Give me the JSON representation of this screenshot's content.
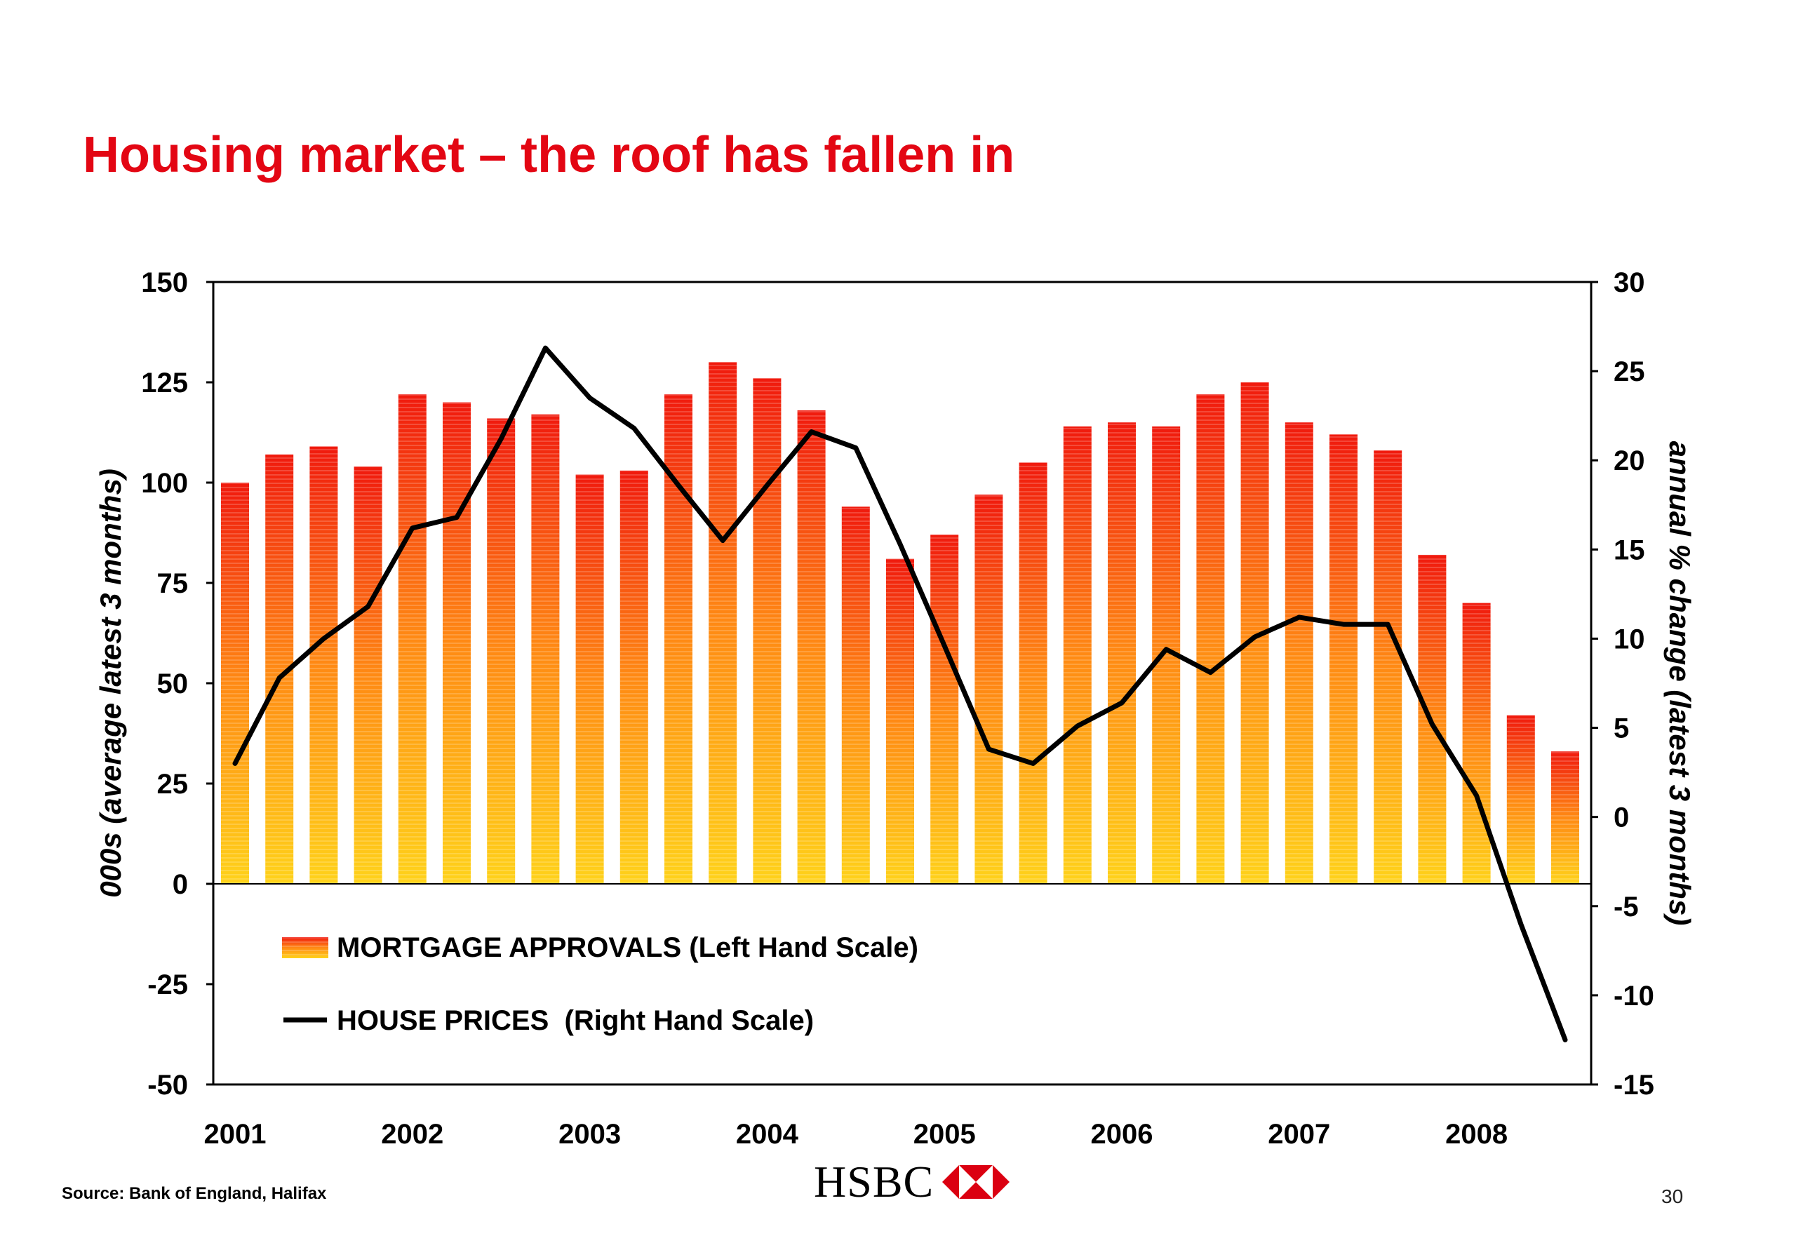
{
  "slide": {
    "title": "Housing market – the roof has fallen in",
    "source": "Source: Bank of England, Halifax",
    "page_number": "30",
    "logo_text": "HSBC",
    "brand_red": "#db0011"
  },
  "chart_data": {
    "type": "bar",
    "title": "",
    "ylabel": "000s (average latest 3 months)",
    "y2label": "annual % change (latest 3 months)",
    "ylim": [
      -50,
      150
    ],
    "y2lim": [
      -15,
      30
    ],
    "yticks": [
      150,
      125,
      100,
      75,
      50,
      25,
      0,
      -25,
      -50
    ],
    "y2ticks": [
      30,
      25,
      20,
      15,
      10,
      5,
      0,
      -5,
      -10,
      -15
    ],
    "xticks": [
      "2001",
      "2002",
      "2003",
      "2004",
      "2005",
      "2006",
      "2007",
      "2008"
    ],
    "grid": false,
    "legend_position": "bottom-left inside",
    "x_start": 2001,
    "x_step": 0.25,
    "series": [
      {
        "name": "MORTGAGE APPROVALS (Left Hand Scale)",
        "type": "bar",
        "axis": "left",
        "color_top": "#f01a0e",
        "color_bottom": "#ffd21a",
        "values": [
          100,
          107,
          109,
          104,
          122,
          120,
          116,
          117,
          102,
          103,
          122,
          130,
          126,
          118,
          94,
          81,
          87,
          97,
          105,
          114,
          115,
          114,
          122,
          125,
          115,
          112,
          108,
          82,
          70,
          42,
          33
        ]
      },
      {
        "name": "HOUSE PRICES  (Right Hand Scale)",
        "type": "line",
        "axis": "right",
        "color": "#000000",
        "values": [
          3,
          7.8,
          10,
          11.8,
          16.2,
          16.8,
          21.2,
          26.3,
          23.5,
          21.8,
          18.6,
          15.5,
          18.6,
          21.6,
          20.7,
          15.3,
          9.6,
          3.8,
          3.0,
          5.1,
          6.4,
          9.4,
          8.1,
          10.1,
          11.2,
          10.8,
          10.8,
          5.2,
          1.2,
          -6.0,
          -12.5
        ]
      }
    ]
  }
}
